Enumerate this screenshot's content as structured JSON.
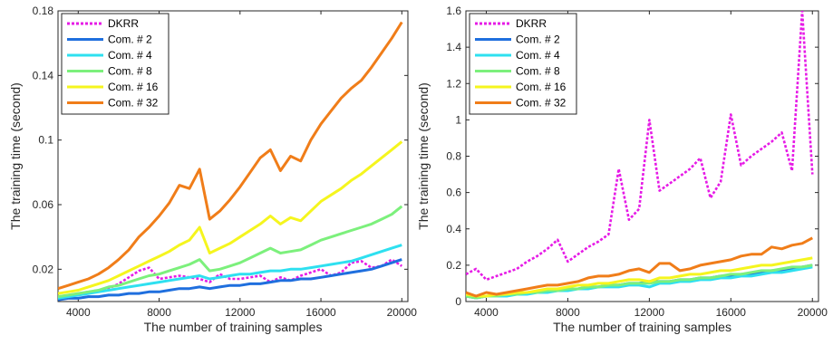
{
  "chart_data": [
    {
      "type": "line",
      "xlabel": "The number of training samples",
      "ylabel": "The training time (second)",
      "xlim": [
        3000,
        20300
      ],
      "ylim": [
        0,
        0.18
      ],
      "xticks": [
        4000,
        8000,
        12000,
        16000,
        20000
      ],
      "yticks": [
        0.02,
        0.06,
        0.1,
        0.14,
        0.18
      ],
      "ytick_labels": [
        "0.02",
        "0.06",
        "0.1",
        "0.14",
        "0.18"
      ],
      "grid": false,
      "legend_position": "top-left",
      "x": [
        3000,
        3500,
        4000,
        4500,
        5000,
        5500,
        6000,
        6500,
        7000,
        7500,
        8000,
        8500,
        9000,
        9500,
        10000,
        10500,
        11000,
        11500,
        12000,
        12500,
        13000,
        13500,
        14000,
        14500,
        15000,
        15500,
        16000,
        16500,
        17000,
        17500,
        18000,
        18500,
        19000,
        19500,
        20000
      ],
      "series": [
        {
          "name": "DKRR",
          "color": "#e61be6",
          "dashed": true,
          "values": [
            0.003,
            0.004,
            0.005,
            0.006,
            0.007,
            0.008,
            0.011,
            0.015,
            0.019,
            0.021,
            0.014,
            0.015,
            0.016,
            0.015,
            0.014,
            0.012,
            0.017,
            0.014,
            0.014,
            0.015,
            0.016,
            0.012,
            0.015,
            0.013,
            0.016,
            0.018,
            0.02,
            0.016,
            0.018,
            0.024,
            0.025,
            0.021,
            0.022,
            0.026,
            0.022
          ]
        },
        {
          "name": "Com. # 2",
          "color": "#1f6fde",
          "values": [
            0.001,
            0.002,
            0.002,
            0.003,
            0.003,
            0.004,
            0.004,
            0.005,
            0.005,
            0.006,
            0.006,
            0.007,
            0.008,
            0.008,
            0.009,
            0.008,
            0.009,
            0.01,
            0.01,
            0.011,
            0.011,
            0.012,
            0.013,
            0.013,
            0.014,
            0.014,
            0.015,
            0.016,
            0.017,
            0.018,
            0.019,
            0.02,
            0.022,
            0.024,
            0.026
          ]
        },
        {
          "name": "Com. # 4",
          "color": "#2ee0f0",
          "values": [
            0.002,
            0.003,
            0.004,
            0.005,
            0.006,
            0.007,
            0.008,
            0.009,
            0.01,
            0.011,
            0.012,
            0.013,
            0.014,
            0.015,
            0.016,
            0.014,
            0.015,
            0.016,
            0.017,
            0.017,
            0.018,
            0.019,
            0.019,
            0.02,
            0.02,
            0.021,
            0.022,
            0.023,
            0.024,
            0.025,
            0.027,
            0.029,
            0.031,
            0.033,
            0.035
          ]
        },
        {
          "name": "Com. # 8",
          "color": "#7cf07c",
          "values": [
            0.003,
            0.004,
            0.005,
            0.006,
            0.007,
            0.009,
            0.01,
            0.012,
            0.014,
            0.016,
            0.017,
            0.019,
            0.021,
            0.023,
            0.026,
            0.019,
            0.02,
            0.022,
            0.024,
            0.027,
            0.03,
            0.033,
            0.03,
            0.031,
            0.032,
            0.035,
            0.038,
            0.04,
            0.042,
            0.044,
            0.046,
            0.048,
            0.051,
            0.054,
            0.059
          ]
        },
        {
          "name": "Com. # 16",
          "color": "#f5f51e",
          "values": [
            0.005,
            0.006,
            0.007,
            0.009,
            0.011,
            0.013,
            0.016,
            0.019,
            0.022,
            0.025,
            0.028,
            0.031,
            0.035,
            0.038,
            0.046,
            0.03,
            0.033,
            0.036,
            0.04,
            0.044,
            0.048,
            0.053,
            0.048,
            0.052,
            0.05,
            0.056,
            0.062,
            0.066,
            0.07,
            0.075,
            0.079,
            0.084,
            0.089,
            0.094,
            0.099
          ]
        },
        {
          "name": "Com. # 32",
          "color": "#f07d19",
          "values": [
            0.008,
            0.01,
            0.012,
            0.014,
            0.017,
            0.021,
            0.026,
            0.032,
            0.04,
            0.046,
            0.053,
            0.061,
            0.072,
            0.07,
            0.082,
            0.051,
            0.056,
            0.063,
            0.071,
            0.08,
            0.089,
            0.094,
            0.081,
            0.09,
            0.087,
            0.1,
            0.11,
            0.118,
            0.126,
            0.132,
            0.137,
            0.145,
            0.154,
            0.163,
            0.173
          ]
        }
      ]
    },
    {
      "type": "line",
      "xlabel": "The number of training samples",
      "ylabel": "The training time (second)",
      "xlim": [
        3000,
        20300
      ],
      "ylim": [
        0,
        1.6
      ],
      "xticks": [
        4000,
        8000,
        12000,
        16000,
        20000
      ],
      "yticks": [
        0,
        0.2,
        0.4,
        0.6,
        0.8,
        1,
        1.2,
        1.4,
        1.6
      ],
      "ytick_labels": [
        "0",
        "0.2",
        "0.4",
        "0.6",
        "0.8",
        "1",
        "1.2",
        "1.4",
        "1.6"
      ],
      "grid": false,
      "legend_position": "top-left",
      "x": [
        3000,
        3500,
        4000,
        4500,
        5000,
        5500,
        6000,
        6500,
        7000,
        7500,
        8000,
        8500,
        9000,
        9500,
        10000,
        10500,
        11000,
        11500,
        12000,
        12500,
        13000,
        13500,
        14000,
        14500,
        15000,
        15500,
        16000,
        16500,
        17000,
        17500,
        18000,
        18500,
        19000,
        19500,
        20000
      ],
      "series": [
        {
          "name": "DKRR",
          "color": "#e61be6",
          "dashed": true,
          "values": [
            0.15,
            0.18,
            0.12,
            0.14,
            0.16,
            0.18,
            0.22,
            0.25,
            0.29,
            0.34,
            0.22,
            0.26,
            0.3,
            0.33,
            0.37,
            0.73,
            0.45,
            0.51,
            1.0,
            0.61,
            0.65,
            0.69,
            0.73,
            0.79,
            0.57,
            0.66,
            1.03,
            0.75,
            0.8,
            0.84,
            0.88,
            0.93,
            0.72,
            1.6,
            0.7
          ]
        },
        {
          "name": "Com. # 2",
          "color": "#1f6fde",
          "values": [
            0.03,
            0.02,
            0.03,
            0.03,
            0.04,
            0.04,
            0.05,
            0.05,
            0.06,
            0.06,
            0.07,
            0.07,
            0.08,
            0.08,
            0.09,
            0.09,
            0.1,
            0.1,
            0.11,
            0.11,
            0.11,
            0.12,
            0.12,
            0.13,
            0.13,
            0.14,
            0.14,
            0.15,
            0.15,
            0.16,
            0.17,
            0.17,
            0.18,
            0.19,
            0.2
          ]
        },
        {
          "name": "Com. # 4",
          "color": "#2ee0f0",
          "values": [
            0.03,
            0.02,
            0.03,
            0.03,
            0.03,
            0.04,
            0.04,
            0.05,
            0.05,
            0.06,
            0.06,
            0.07,
            0.07,
            0.08,
            0.08,
            0.08,
            0.09,
            0.09,
            0.08,
            0.1,
            0.1,
            0.11,
            0.11,
            0.12,
            0.12,
            0.13,
            0.13,
            0.14,
            0.14,
            0.15,
            0.16,
            0.16,
            0.17,
            0.18,
            0.19
          ]
        },
        {
          "name": "Com. # 8",
          "color": "#7cf07c",
          "values": [
            0.03,
            0.02,
            0.03,
            0.03,
            0.04,
            0.04,
            0.05,
            0.05,
            0.06,
            0.06,
            0.07,
            0.07,
            0.08,
            0.08,
            0.09,
            0.09,
            0.1,
            0.1,
            0.1,
            0.11,
            0.11,
            0.12,
            0.12,
            0.13,
            0.13,
            0.14,
            0.15,
            0.15,
            0.16,
            0.17,
            0.17,
            0.18,
            0.19,
            0.19,
            0.2
          ]
        },
        {
          "name": "Com. # 16",
          "color": "#f5f51e",
          "values": [
            0.04,
            0.03,
            0.03,
            0.04,
            0.04,
            0.05,
            0.05,
            0.06,
            0.07,
            0.07,
            0.08,
            0.09,
            0.09,
            0.1,
            0.1,
            0.11,
            0.12,
            0.12,
            0.11,
            0.13,
            0.13,
            0.14,
            0.15,
            0.15,
            0.16,
            0.17,
            0.17,
            0.18,
            0.19,
            0.2,
            0.2,
            0.21,
            0.22,
            0.23,
            0.24
          ]
        },
        {
          "name": "Com. # 32",
          "color": "#f07d19",
          "values": [
            0.05,
            0.03,
            0.05,
            0.04,
            0.05,
            0.06,
            0.07,
            0.08,
            0.09,
            0.09,
            0.1,
            0.11,
            0.13,
            0.14,
            0.14,
            0.15,
            0.17,
            0.18,
            0.16,
            0.21,
            0.21,
            0.17,
            0.18,
            0.2,
            0.21,
            0.22,
            0.23,
            0.25,
            0.26,
            0.26,
            0.3,
            0.29,
            0.31,
            0.32,
            0.35
          ]
        }
      ]
    }
  ]
}
